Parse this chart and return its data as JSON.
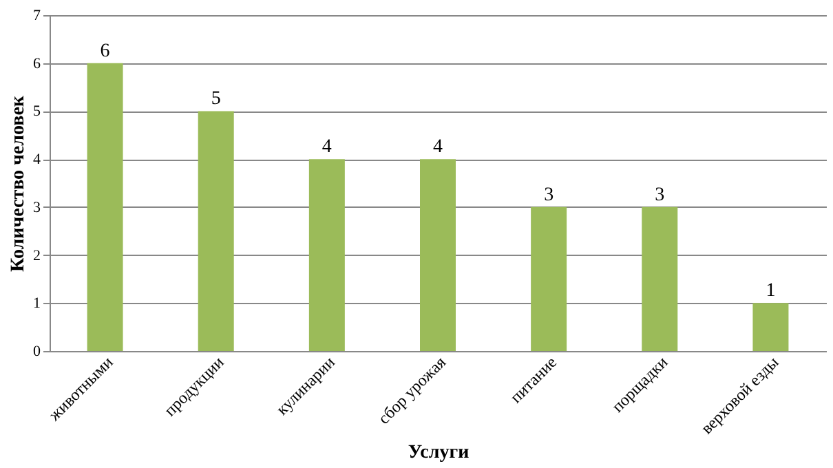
{
  "chart_data": {
    "type": "bar",
    "xlabel": "Услуги",
    "ylabel": "Количество человек",
    "categories": [
      "животными",
      "продукции",
      "кулинарии",
      "сбор урожая",
      "питание",
      "порщадки",
      "верховой езды"
    ],
    "values": [
      6,
      5,
      4,
      4,
      3,
      3,
      1
    ],
    "color": "#9bbb59",
    "ylim": [
      0,
      7
    ],
    "yticks": [
      0,
      1,
      2,
      3,
      4,
      5,
      6,
      7
    ],
    "grid": "y",
    "data_labels": true
  }
}
